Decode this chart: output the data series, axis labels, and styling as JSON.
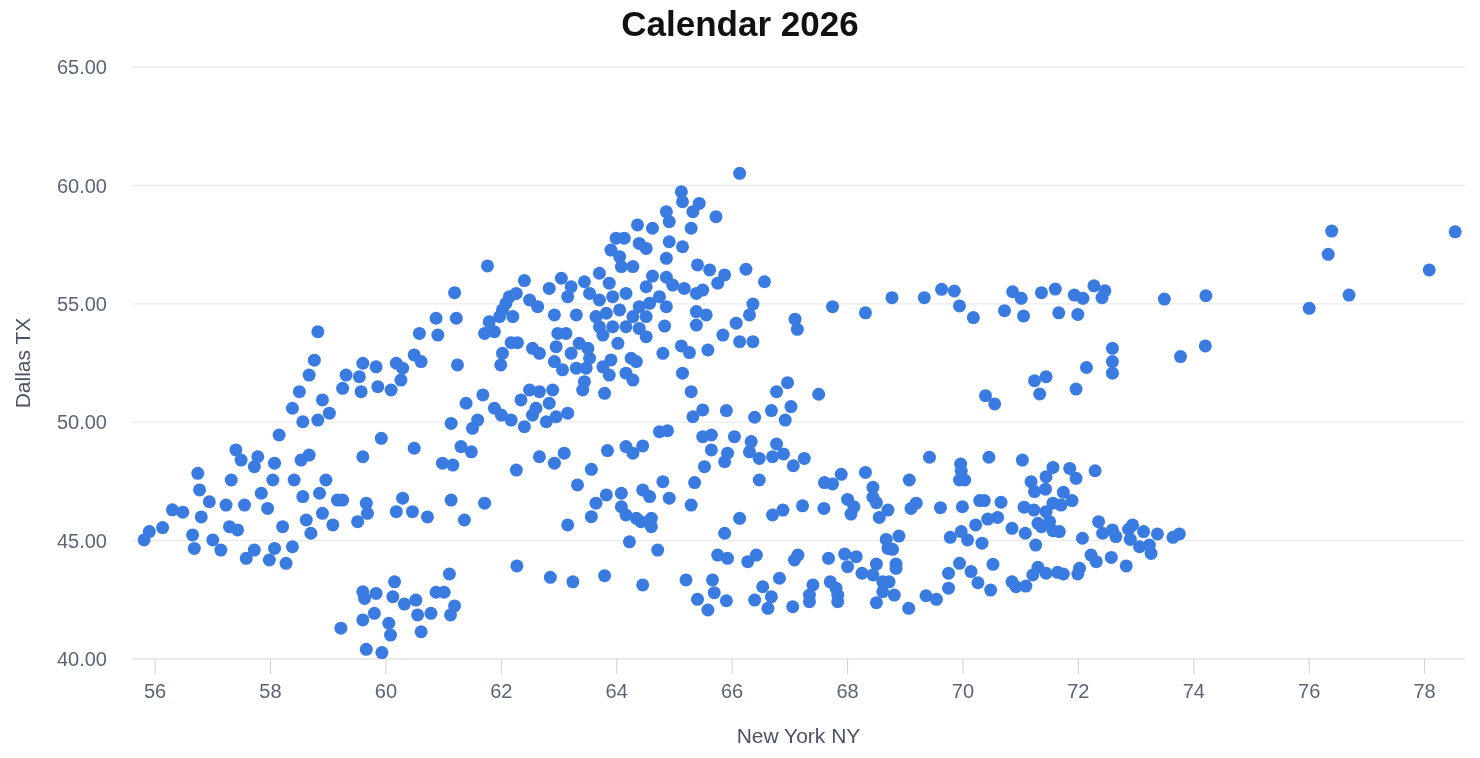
{
  "chart_data": {
    "type": "scatter",
    "title": "Calendar 2026",
    "xlabel": "New York NY",
    "ylabel": "Dallas TX",
    "x": [
      55.81,
      55.9,
      56.13,
      56.3,
      56.48,
      56.68,
      56.65,
      56.74,
      56.77,
      56.8,
      56.94,
      57.0,
      57.14,
      57.23,
      57.29,
      57.4,
      57.49,
      57.32,
      57.55,
      57.43,
      57.58,
      57.72,
      57.78,
      57.72,
      57.84,
      57.95,
      58.04,
      58.07,
      57.98,
      58.07,
      58.21,
      58.15,
      58.27,
      58.38,
      58.38,
      58.5,
      58.56,
      58.41,
      58.53,
      58.67,
      58.62,
      58.7,
      58.56,
      58.67,
      58.76,
      58.82,
      58.82,
      58.9,
      58.85,
      58.96,
      59.02,
      59.08,
      58.9,
      59.16,
      59.25,
      59.31,
      59.25,
      59.54,
      59.6,
      59.57,
      59.6,
      59.51,
      59.66,
      59.68,
      59.83,
      59.86,
      59.92,
      60.09,
      60.18,
      60.26,
      60.29,
      60.18,
      60.29,
      60.49,
      60.46,
      60.72,
      60.49,
      60.58,
      60.61,
      60.87,
      60.9,
      61.22,
      61.24,
      61.13,
      60.98,
      61.16,
      61.3,
      61.48,
      61.13,
      61.36,
      61.71,
      61.39,
      61.5,
      61.68,
      61.59,
      59.22,
      59.6,
      59.6,
      59.63,
      59.83,
      59.8,
      59.66,
      59.93,
      60.05,
      60.08,
      60.12,
      60.15,
      60.32,
      60.52,
      60.55,
      60.61,
      60.78,
      60.87,
      61.01,
      61.1,
      61.19,
      61.12,
      66.13,
      65.12,
      65.14,
      65.43,
      65.32,
      65.72,
      65.29,
      64.86,
      64.91,
      64.62,
      64.36,
      63.99,
      64.13,
      64.39,
      64.51,
      64.91,
      65.14,
      63.9,
      64.05,
      64.86,
      64.08,
      64.28,
      61.76,
      65.4,
      65.61,
      66.24,
      66.56,
      65.87,
      65.75,
      64.62,
      64.86,
      63.7,
      62.4,
      63.04,
      62.83,
      63.21,
      63.44,
      63.87,
      64.51,
      64.97,
      65.17,
      65.49,
      65.38,
      61.19,
      62.14,
      62.26,
      62.08,
      62.49,
      62.63,
      63.15,
      63.53,
      63.7,
      63.93,
      64.16,
      64.74,
      66.36,
      65.38,
      65.55,
      66.3,
      62.02,
      61.97,
      62.2,
      61.79,
      61.71,
      61.88,
      62.92,
      63.3,
      63.64,
      63.82,
      64.05,
      64.28,
      64.51,
      64.39,
      64.57,
      64.86,
      63.7,
      63.93,
      64.16,
      64.39,
      64.83,
      65.38,
      66.07,
      62.98,
      63.12,
      63.76,
      64.51,
      62.17,
      62.28,
      64.02,
      65.84,
      66.13,
      66.36,
      65.12,
      65.26,
      65.58,
      64.8,
      62.54,
      62.66,
      62.95,
      63.35,
      63.5,
      63.21,
      62.02,
      61.99,
      62.92,
      63.06,
      63.3,
      63.53,
      63.47,
      63.76,
      63.9,
      63.87,
      64.16,
      64.25,
      64.34,
      64.28,
      63.44,
      63.41,
      63.79,
      65.14,
      65.29,
      62.49,
      62.66,
      62.89,
      62.34,
      62.83,
      62.6,
      61.88,
      62.0,
      62.17,
      62.54,
      63.15,
      62.95,
      62.4,
      62.78,
      65.49,
      65.9,
      65.32,
      66.39,
      64.74,
      64.88,
      65.49,
      65.64,
      66.04,
      66.33,
      64.16,
      64.45,
      64.28,
      63.84,
      65.64,
      65.92,
      66.3,
      65.87,
      66.47,
      62.66,
      62.92,
      63.09,
      65.52,
      62.26,
      63.56,
      63.32,
      64.8,
      65.35,
      66.47,
      63.64,
      63.82,
      64.08,
      64.45,
      64.57,
      64.91,
      65.29,
      64.08,
      63.15,
      63.56,
      64.16,
      64.34,
      64.42,
      64.6,
      64.6,
      64.22,
      64.71,
      65.87,
      66.13,
      66.7,
      66.88,
      67.08,
      65.75,
      65.92,
      66.27,
      66.42,
      66.82,
      66.53,
      66.68,
      66.39,
      66.62,
      67.05,
      65.2,
      65.4,
      65.58,
      65.66,
      65.69,
      65.9,
      64.45,
      63.79,
      63.24,
      62.85,
      62.27,
      67.74,
      68.31,
      68.77,
      69.33,
      69.63,
      69.85,
      69.94,
      70.18,
      70.72,
      70.86,
      71.01,
      71.05,
      71.36,
      71.6,
      71.66,
      71.93,
      72.08,
      71.99,
      72.27,
      72.46,
      72.41,
      73.49,
      74.21,
      72.59,
      72.59,
      72.59,
      72.14,
      71.44,
      71.24,
      71.33,
      71.96,
      70.39,
      70.55,
      73.77,
      74.2,
      67.09,
      67.13,
      66.96,
      66.77,
      66.68,
      67.02,
      66.92,
      67.5,
      66.77,
      66.7,
      66.89,
      67.06,
      67.25,
      67.6,
      67.74,
      67.89,
      68.31,
      68.44,
      68.44,
      68.5,
      68.0,
      68.11,
      68.06,
      67.59,
      67.22,
      68.7,
      68.55,
      69.07,
      69.1,
      69.19,
      69.42,
      69.61,
      69.96,
      69.97,
      69.94,
      70.03,
      70.45,
      69.99,
      70.29,
      70.37,
      70.66,
      70.22,
      70.43,
      70.6,
      69.78,
      69.97,
      70.08,
      70.33,
      70.85,
      71.08,
      71.03,
      71.18,
      71.44,
      71.56,
      71.85,
      71.96,
      72.29,
      71.24,
      71.43,
      71.74,
      71.89,
      71.06,
      71.23,
      71.56,
      71.7,
      71.44,
      71.3,
      71.36,
      71.5,
      71.56,
      71.67,
      71.26,
      72.07,
      72.35,
      72.42,
      72.59,
      72.65,
      72.87,
      72.94,
      72.9,
      73.06,
      73.13,
      73.23,
      73.26,
      73.37,
      73.64,
      73.75,
      72.22,
      72.31,
      72.57,
      72.83,
      71.3,
      71.21,
      71.44,
      71.64,
      71.74,
      72.02,
      71.99,
      70.85,
      70.92,
      71.09,
      70.52,
      69.94,
      69.75,
      70.14,
      70.26,
      69.75,
      70.48,
      69.36,
      69.54,
      69.06,
      68.89,
      68.67,
      68.7,
      68.78,
      68.84,
      68.84,
      68.5,
      68.44,
      68.25,
      68.15,
      67.95,
      68.0,
      67.67,
      67.14,
      67.4,
      67.34,
      67.34,
      67.7,
      67.8,
      67.83,
      67.83,
      68.5,
      68.61,
      68.72,
      68.61,
      68.81,
      76.0,
      76.69,
      76.33,
      76.39,
      78.08,
      78.53
    ],
    "values": [
      45.03,
      45.38,
      45.55,
      46.3,
      46.2,
      44.67,
      45.24,
      47.84,
      47.14,
      46.0,
      46.64,
      45.03,
      44.6,
      46.5,
      45.59,
      48.83,
      48.4,
      47.56,
      46.5,
      45.45,
      44.25,
      44.6,
      48.54,
      48.12,
      47.0,
      46.36,
      47.56,
      48.27,
      44.18,
      44.67,
      45.59,
      49.46,
      44.04,
      44.74,
      50.59,
      51.29,
      50.02,
      47.56,
      48.4,
      48.61,
      45.87,
      45.31,
      46.86,
      51.99,
      52.62,
      53.82,
      50.09,
      50.94,
      47.0,
      47.56,
      50.38,
      45.66,
      46.15,
      46.71,
      51.43,
      51.99,
      46.71,
      51.92,
      52.49,
      51.29,
      48.54,
      45.8,
      46.58,
      46.15,
      52.34,
      51.5,
      49.32,
      51.36,
      52.49,
      51.78,
      52.28,
      46.22,
      46.79,
      48.9,
      46.22,
      46.0,
      52.84,
      53.75,
      52.56,
      54.39,
      53.68,
      54.39,
      52.42,
      49.95,
      48.27,
      48.19,
      48.97,
      48.75,
      46.71,
      45.87,
      46.58,
      50.8,
      49.74,
      51.15,
      50.09,
      41.3,
      41.65,
      42.84,
      42.56,
      42.77,
      41.93,
      40.41,
      40.27,
      41.51,
      41.01,
      42.63,
      43.26,
      42.32,
      42.49,
      41.86,
      41.15,
      41.93,
      42.82,
      42.82,
      43.59,
      42.24,
      41.86,
      60.51,
      59.73,
      59.31,
      59.24,
      58.89,
      58.68,
      58.19,
      58.89,
      58.47,
      58.19,
      58.33,
      57.77,
      57.77,
      57.55,
      57.34,
      57.62,
      57.41,
      57.27,
      56.99,
      56.92,
      56.57,
      56.57,
      56.6,
      56.64,
      56.43,
      56.46,
      55.93,
      56.22,
      55.87,
      56.17,
      56.12,
      56.29,
      55.98,
      56.08,
      55.65,
      55.72,
      55.93,
      55.87,
      55.72,
      55.79,
      55.65,
      55.58,
      55.44,
      55.47,
      55.3,
      55.44,
      55.02,
      55.16,
      54.88,
      55.3,
      55.44,
      55.16,
      55.3,
      55.44,
      55.3,
      54.99,
      54.67,
      54.53,
      54.53,
      54.74,
      54.46,
      54.46,
      54.24,
      53.75,
      53.82,
      54.53,
      54.53,
      54.46,
      54.6,
      54.74,
      54.46,
      54.46,
      54.88,
      55.02,
      54.88,
      54.03,
      54.03,
      54.03,
      53.96,
      54.06,
      54.1,
      54.18,
      53.75,
      53.75,
      53.68,
      53.61,
      53.36,
      53.36,
      53.33,
      53.68,
      53.4,
      53.4,
      53.22,
      52.94,
      53.05,
      52.91,
      53.12,
      52.91,
      53.19,
      53.33,
      53.12,
      52.91,
      52.91,
      52.42,
      52.56,
      52.21,
      52.28,
      52.7,
      52.28,
      52.34,
      52.63,
      51.99,
      52.07,
      52.7,
      52.56,
      51.78,
      51.71,
      51.36,
      51.22,
      52.07,
      51.29,
      51.36,
      51.29,
      51.36,
      50.94,
      50.8,
      50.59,
      50.59,
      50.3,
      50.09,
      50.3,
      50.38,
      50.23,
      49.81,
      50.02,
      50.52,
      50.49,
      50.23,
      50.21,
      49.6,
      49.64,
      49.39,
      49.46,
      49.39,
      49.18,
      48.97,
      49.0,
      48.69,
      48.8,
      48.83,
      48.69,
      48.75,
      48.33,
      48.47,
      48.54,
      48.27,
      48.69,
      48.12,
      47.98,
      48.01,
      47.35,
      47.49,
      47.45,
      47.56,
      46.58,
      46.93,
      47.0,
      47.14,
      46.86,
      46.79,
      46.5,
      46.43,
      45.66,
      46.01,
      46.08,
      45.94,
      45.8,
      45.94,
      45.59,
      44.95,
      44.6,
      45.31,
      45.94,
      46.08,
      46.29,
      44.18,
      44.39,
      44.25,
      44.11,
      44.39,
      43.41,
      43.05,
      42.63,
      42.49,
      42.14,
      42.21,
      43.34,
      42.52,
      42.07,
      43.34,
      42.8,
      42.46,
      43.13,
      43.52,
      43.26,
      43.45,
      43.93,
      54.88,
      54.62,
      55.26,
      55.26,
      55.61,
      55.54,
      54.91,
      54.42,
      54.71,
      55.51,
      55.23,
      54.48,
      55.47,
      55.62,
      54.62,
      55.37,
      55.23,
      54.55,
      55.76,
      55.55,
      55.26,
      55.2,
      55.34,
      53.12,
      52.56,
      52.07,
      52.31,
      51.92,
      51.75,
      51.19,
      51.4,
      51.12,
      50.77,
      52.77,
      53.22,
      54.35,
      53.92,
      51.67,
      51.29,
      50.49,
      50.66,
      50.09,
      51.18,
      49.08,
      48.54,
      48.66,
      48.16,
      48.47,
      47.45,
      47.39,
      47.8,
      47.88,
      47.25,
      46.83,
      46.6,
      46.74,
      46.43,
      46.12,
      46.36,
      46.47,
      46.29,
      45.98,
      47.56,
      46.36,
      46.58,
      48.52,
      46.39,
      48.23,
      47.94,
      47.56,
      47.56,
      48.52,
      46.43,
      46.69,
      46.69,
      46.62,
      45.66,
      45.91,
      45.98,
      45.14,
      45.38,
      45.03,
      44.89,
      45.52,
      45.31,
      48.4,
      47.49,
      47.7,
      48.09,
      48.05,
      47.63,
      47.95,
      47.07,
      47.17,
      47.04,
      46.69,
      46.41,
      46.29,
      46.58,
      46.5,
      46.22,
      45.73,
      45.59,
      45.8,
      45.42,
      45.38,
      44.81,
      45.1,
      45.8,
      45.31,
      45.45,
      45.17,
      45.48,
      45.66,
      45.05,
      44.74,
      45.38,
      44.81,
      44.46,
      45.28,
      45.14,
      45.28,
      44.39,
      44.11,
      44.29,
      43.93,
      43.87,
      43.55,
      43.62,
      43.66,
      43.59,
      43.83,
      43.59,
      43.26,
      43.05,
      43.08,
      44.0,
      44.04,
      43.62,
      43.69,
      43.22,
      42.99,
      42.91,
      42.67,
      42.52,
      42.14,
      45.19,
      45.05,
      44.67,
      44.63,
      44.01,
      43.83,
      44.01,
      43.55,
      43.62,
      44.32,
      44.43,
      43.9,
      44.25,
      44.39,
      43.13,
      42.7,
      42.42,
      43.26,
      42.99,
      42.7,
      42.42,
      42.38,
      43.26,
      43.26,
      42.84,
      42.7,
      54.81,
      55.37,
      57.09,
      58.07,
      56.43,
      58.04
    ],
    "color": "#3a7be2",
    "marker": "circle",
    "xlim": [
      55.6,
      78.7
    ],
    "ylim": [
      40,
      65
    ],
    "xticks": [
      56,
      58,
      60,
      62,
      64,
      66,
      68,
      70,
      72,
      74,
      76,
      78
    ],
    "yticks": [
      {
        "value": 40,
        "label": "40.00"
      },
      {
        "value": 45,
        "label": "45.00"
      },
      {
        "value": 50,
        "label": "50.00"
      },
      {
        "value": 55,
        "label": "55.00"
      },
      {
        "value": 60,
        "label": "60.00"
      },
      {
        "value": 65,
        "label": "65.00"
      }
    ],
    "grid": "y"
  }
}
